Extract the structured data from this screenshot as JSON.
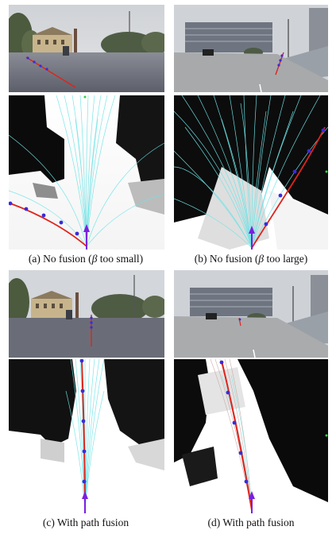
{
  "figure": {
    "subfigures": [
      {
        "id": "a",
        "caption_prefix": "(a) No fusion (",
        "caption_greek": "β",
        "caption_suffix": " too small)"
      },
      {
        "id": "b",
        "caption_prefix": "(b) No fusion (",
        "caption_greek": "β",
        "caption_suffix": " too large)"
      },
      {
        "id": "c",
        "caption_prefix": "(c) With path fusion",
        "caption_greek": "",
        "caption_suffix": ""
      },
      {
        "id": "d",
        "caption_prefix": "(d) With path fusion",
        "caption_greek": "",
        "caption_suffix": ""
      }
    ],
    "colors": {
      "trajectory_bundle": "#6fe3e6",
      "selected_path": "#e0241b",
      "waypoints": "#3b2bd8",
      "robot_arrow": "#7a1fe0",
      "free_space": "#ffffff",
      "obstacles": "#0b0b0b"
    }
  }
}
